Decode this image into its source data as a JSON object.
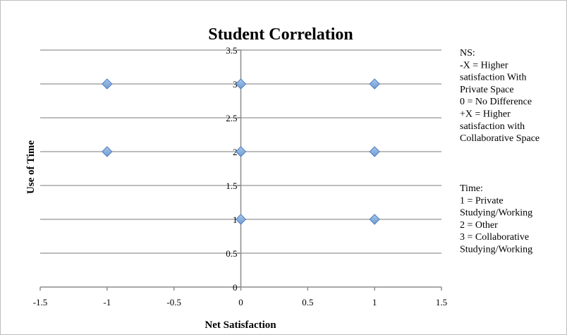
{
  "chart_data": {
    "type": "scatter",
    "title": "Student Correlation",
    "xlabel": "Net Satisfaction",
    "ylabel": "Use of Time",
    "xlim": [
      -1.5,
      1.5
    ],
    "ylim": [
      0,
      3.5
    ],
    "x_ticks": [
      "-1.5",
      "-1",
      "-0.5",
      "0",
      "0.5",
      "1",
      "1.5"
    ],
    "y_ticks": [
      "0",
      "0.5",
      "1",
      "1.5",
      "2",
      "2.5",
      "3",
      "3.5"
    ],
    "grid": "horizontal",
    "legend": "none",
    "marker": "diamond",
    "marker_color": "#6f9bd1",
    "points": [
      {
        "x": -1,
        "y": 3
      },
      {
        "x": 0,
        "y": 3
      },
      {
        "x": 1,
        "y": 3
      },
      {
        "x": -1,
        "y": 2
      },
      {
        "x": 0,
        "y": 2
      },
      {
        "x": 1,
        "y": 2
      },
      {
        "x": 0,
        "y": 1
      },
      {
        "x": 1,
        "y": 1
      }
    ]
  },
  "notes": {
    "ns_lines": [
      "NS:",
      "-X = Higher",
      "satisfaction With",
      "Private Space",
      "0 = No Difference",
      "+X = Higher",
      "satisfaction  with",
      "Collaborative Space"
    ],
    "time_lines": [
      "Time:",
      "1 = Private",
      "Studying/Working",
      "2 = Other",
      "3 = Collaborative",
      "Studying/Working"
    ]
  }
}
